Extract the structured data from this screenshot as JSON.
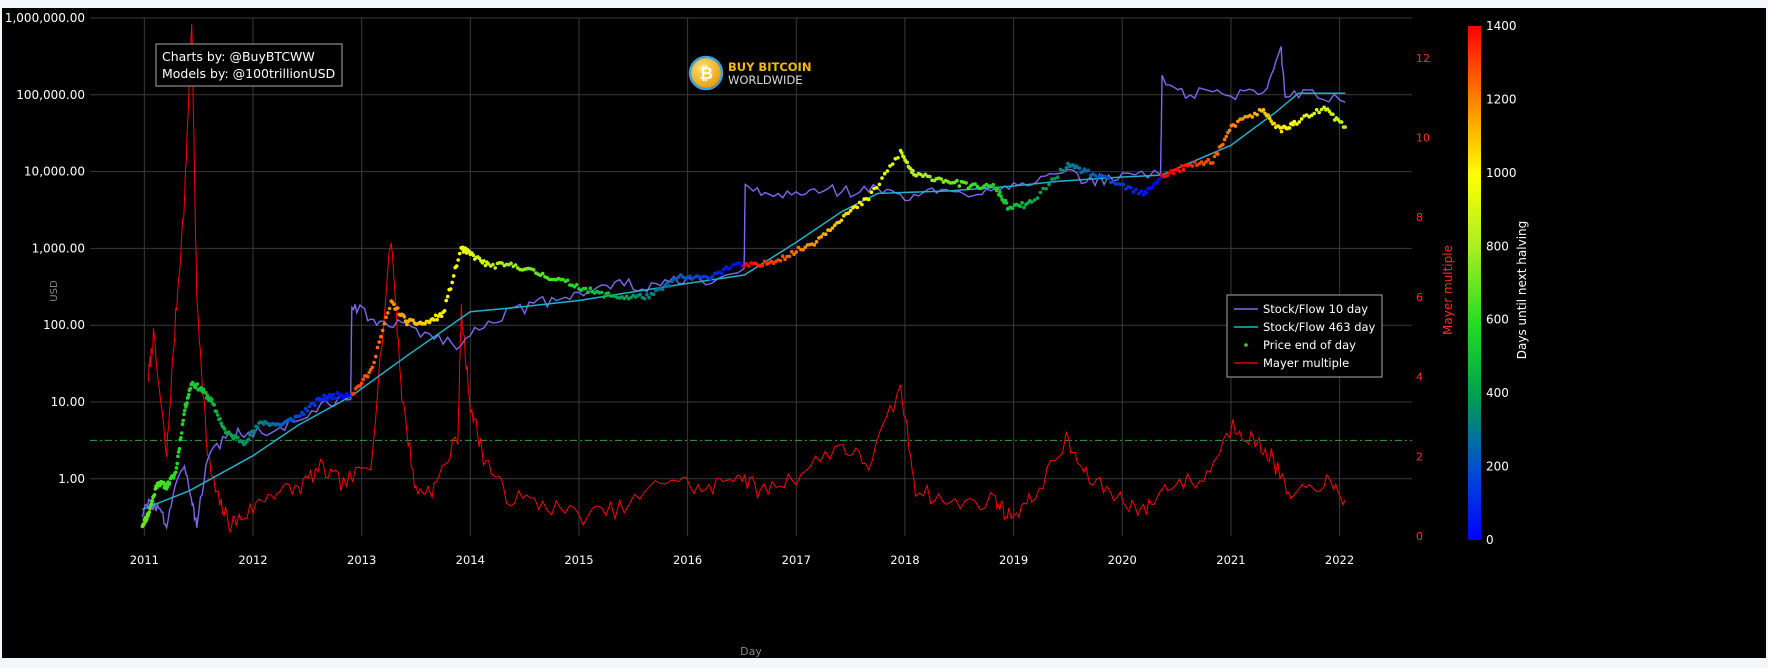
{
  "chart_data": {
    "type": "scatter",
    "credits": {
      "line1": "Charts by: @BuyBTCWW",
      "line2": "Models by: @100trillionUSD"
    },
    "logo": {
      "line1": "BUY BITCOIN",
      "line2": "WORLDWIDE",
      "symbol": "₿"
    },
    "xlabel": "Day",
    "ylabel_left": "USD",
    "ylabel_right": "Mayer multiple",
    "colorbar_label": "Days until next halving",
    "x_ticks": [
      "2011",
      "2012",
      "2013",
      "2014",
      "2015",
      "2016",
      "2017",
      "2018",
      "2019",
      "2020",
      "2021",
      "2022"
    ],
    "y_left_scale": "log",
    "y_left_ticks": [
      "1.00",
      "10.00",
      "100.00",
      "1,000.00",
      "10,000.00",
      "100,000.00",
      "1,000,000.00"
    ],
    "y_left_range": [
      0.18,
      1000000
    ],
    "y_right_ticks": [
      "0",
      "2",
      "4",
      "6",
      "8",
      "10",
      "12"
    ],
    "y_right_range": [
      0,
      13
    ],
    "colorbar_ticks": [
      "0",
      "200",
      "400",
      "600",
      "800",
      "1000",
      "1200",
      "1400"
    ],
    "colorbar_range": [
      0,
      1400
    ],
    "x_range": [
      "2010-07-01",
      "2022-09-01"
    ],
    "reference_line": {
      "y": 2.4,
      "axis": "right",
      "style": "dash-dot",
      "color": "#2ea043"
    },
    "legend_position": "right-middle",
    "series": [
      {
        "name": "Stock/Flow 10 day",
        "color": "#7b68ee",
        "points": [
          [
            "2010-12-25",
            0.35
          ],
          [
            "2011-01-20",
            0.5
          ],
          [
            "2011-02-20",
            0.4
          ],
          [
            "2011-03-15",
            0.25
          ],
          [
            "2011-04-15",
            0.9
          ],
          [
            "2011-05-20",
            1.3
          ],
          [
            "2011-06-10",
            0.5
          ],
          [
            "2011-06-25",
            0.25
          ],
          [
            "2011-08-01",
            2.0
          ],
          [
            "2011-10-01",
            3.5
          ],
          [
            "2011-12-01",
            4.0
          ],
          [
            "2012-03-01",
            4.0
          ],
          [
            "2012-06-01",
            6.0
          ],
          [
            "2012-09-01",
            9.0
          ],
          [
            "2012-11-25",
            12.0
          ],
          [
            "2012-11-29",
            200
          ],
          [
            "2013-01-01",
            150
          ],
          [
            "2013-03-01",
            100
          ],
          [
            "2013-06-01",
            100
          ],
          [
            "2013-09-01",
            70
          ],
          [
            "2013-12-01",
            55
          ],
          [
            "2014-03-01",
            120
          ],
          [
            "2014-06-01",
            150
          ],
          [
            "2014-09-01",
            200
          ],
          [
            "2014-12-01",
            250
          ],
          [
            "2015-03-01",
            300
          ],
          [
            "2015-06-01",
            350
          ],
          [
            "2015-09-01",
            300
          ],
          [
            "2015-12-01",
            400
          ],
          [
            "2016-03-01",
            350
          ],
          [
            "2016-07-08",
            450
          ],
          [
            "2016-07-12",
            6000
          ],
          [
            "2016-10-01",
            5000
          ],
          [
            "2017-01-01",
            5000
          ],
          [
            "2017-04-01",
            6000
          ],
          [
            "2017-07-01",
            5500
          ],
          [
            "2017-10-01",
            6000
          ],
          [
            "2018-01-01",
            4500
          ],
          [
            "2018-04-01",
            5500
          ],
          [
            "2018-07-01",
            5000
          ],
          [
            "2018-10-01",
            6000
          ],
          [
            "2019-01-01",
            7000
          ],
          [
            "2019-04-01",
            8000
          ],
          [
            "2019-07-01",
            9000
          ],
          [
            "2019-10-01",
            7500
          ],
          [
            "2020-01-01",
            9000
          ],
          [
            "2020-05-08",
            9000
          ],
          [
            "2020-05-13",
            160000
          ],
          [
            "2020-08-01",
            100000
          ],
          [
            "2020-11-01",
            110000
          ],
          [
            "2021-02-01",
            100000
          ],
          [
            "2021-05-01",
            120000
          ],
          [
            "2021-06-15",
            450000
          ],
          [
            "2021-07-01",
            110000
          ],
          [
            "2021-10-01",
            100000
          ],
          [
            "2022-01-20",
            80000
          ]
        ]
      },
      {
        "name": "Stock/Flow 463 day",
        "color": "#20b2c8",
        "points": [
          [
            "2010-12-25",
            0.4
          ],
          [
            "2011-06-01",
            0.7
          ],
          [
            "2012-01-01",
            2.0
          ],
          [
            "2012-06-01",
            5.0
          ],
          [
            "2012-11-28",
            12.0
          ],
          [
            "2013-06-01",
            40
          ],
          [
            "2014-01-01",
            150
          ],
          [
            "2014-06-01",
            170
          ],
          [
            "2015-01-01",
            210
          ],
          [
            "2015-06-01",
            260
          ],
          [
            "2016-01-01",
            350
          ],
          [
            "2016-07-09",
            450
          ],
          [
            "2017-01-01",
            1200
          ],
          [
            "2017-06-01",
            3000
          ],
          [
            "2017-10-01",
            5200
          ],
          [
            "2018-06-01",
            5600
          ],
          [
            "2019-01-01",
            6500
          ],
          [
            "2019-06-01",
            7500
          ],
          [
            "2020-01-01",
            8500
          ],
          [
            "2020-05-11",
            9000
          ],
          [
            "2021-01-01",
            22000
          ],
          [
            "2021-06-01",
            60000
          ],
          [
            "2021-08-15",
            105000
          ],
          [
            "2022-01-20",
            105000
          ]
        ]
      },
      {
        "name": "Price end of day",
        "marker": "dot",
        "color_by": "days_until_next_halving",
        "points": [
          [
            "2010-12-25",
            0.25
          ],
          [
            "2011-01-15",
            0.35
          ],
          [
            "2011-02-15",
            0.9
          ],
          [
            "2011-03-15",
            0.8
          ],
          [
            "2011-04-15",
            1.2
          ],
          [
            "2011-05-15",
            8.0
          ],
          [
            "2011-06-08",
            18
          ],
          [
            "2011-07-15",
            14
          ],
          [
            "2011-08-15",
            10
          ],
          [
            "2011-10-01",
            4.0
          ],
          [
            "2011-12-01",
            3.0
          ],
          [
            "2012-02-01",
            5.5
          ],
          [
            "2012-04-01",
            5.0
          ],
          [
            "2012-06-01",
            6.5
          ],
          [
            "2012-08-15",
            11
          ],
          [
            "2012-10-01",
            12
          ],
          [
            "2012-12-01",
            13
          ],
          [
            "2013-02-01",
            25
          ],
          [
            "2013-04-09",
            200
          ],
          [
            "2013-06-01",
            110
          ],
          [
            "2013-08-01",
            105
          ],
          [
            "2013-10-01",
            140
          ],
          [
            "2013-12-01",
            1000
          ],
          [
            "2014-01-01",
            850
          ],
          [
            "2014-03-01",
            600
          ],
          [
            "2014-06-01",
            600
          ],
          [
            "2014-09-01",
            450
          ],
          [
            "2014-12-01",
            350
          ],
          [
            "2015-03-01",
            260
          ],
          [
            "2015-06-01",
            230
          ],
          [
            "2015-09-01",
            240
          ],
          [
            "2015-12-01",
            420
          ],
          [
            "2016-03-01",
            410
          ],
          [
            "2016-06-01",
            600
          ],
          [
            "2016-09-01",
            600
          ],
          [
            "2016-12-01",
            800
          ],
          [
            "2017-03-01",
            1200
          ],
          [
            "2017-06-01",
            2500
          ],
          [
            "2017-09-01",
            4500
          ],
          [
            "2017-12-17",
            18000
          ],
          [
            "2018-02-01",
            9000
          ],
          [
            "2018-05-01",
            8000
          ],
          [
            "2018-08-01",
            6500
          ],
          [
            "2018-11-01",
            6300
          ],
          [
            "2018-12-15",
            3300
          ],
          [
            "2019-03-01",
            3900
          ],
          [
            "2019-06-26",
            12000
          ],
          [
            "2019-09-01",
            10000
          ],
          [
            "2019-12-01",
            7300
          ],
          [
            "2020-03-12",
            5000
          ],
          [
            "2020-05-11",
            8600
          ],
          [
            "2020-08-01",
            11500
          ],
          [
            "2020-11-01",
            14000
          ],
          [
            "2021-01-08",
            40000
          ],
          [
            "2021-04-14",
            63000
          ],
          [
            "2021-06-15",
            35000
          ],
          [
            "2021-08-01",
            42000
          ],
          [
            "2021-11-10",
            67000
          ],
          [
            "2022-01-20",
            38000
          ]
        ]
      },
      {
        "name": "Mayer multiple",
        "color": "#ff0000",
        "axis": "right",
        "points": [
          [
            "2011-01-15",
            4.0
          ],
          [
            "2011-02-01",
            5.0
          ],
          [
            "2011-03-15",
            2.0
          ],
          [
            "2011-04-15",
            5.5
          ],
          [
            "2011-05-15",
            8.5
          ],
          [
            "2011-06-08",
            13.0
          ],
          [
            "2011-06-25",
            6.0
          ],
          [
            "2011-08-01",
            2.0
          ],
          [
            "2011-09-01",
            1.0
          ],
          [
            "2011-10-15",
            0.3
          ],
          [
            "2011-12-01",
            0.5
          ],
          [
            "2012-03-01",
            1.1
          ],
          [
            "2012-06-01",
            1.2
          ],
          [
            "2012-08-15",
            1.7
          ],
          [
            "2012-11-01",
            1.3
          ],
          [
            "2013-02-01",
            1.8
          ],
          [
            "2013-04-09",
            7.5
          ],
          [
            "2013-05-15",
            3.5
          ],
          [
            "2013-07-01",
            1.1
          ],
          [
            "2013-09-01",
            1.2
          ],
          [
            "2013-11-20",
            2.5
          ],
          [
            "2013-12-01",
            5.6
          ],
          [
            "2014-01-01",
            3.3
          ],
          [
            "2014-02-15",
            2.0
          ],
          [
            "2014-05-01",
            1.0
          ],
          [
            "2014-09-01",
            0.8
          ],
          [
            "2015-01-15",
            0.5
          ],
          [
            "2015-06-01",
            0.7
          ],
          [
            "2015-11-05",
            1.5
          ],
          [
            "2016-03-01",
            1.1
          ],
          [
            "2016-06-15",
            1.6
          ],
          [
            "2016-09-01",
            1.1
          ],
          [
            "2017-01-01",
            1.5
          ],
          [
            "2017-05-25",
            2.3
          ],
          [
            "2017-09-01",
            1.8
          ],
          [
            "2017-12-17",
            3.7
          ],
          [
            "2018-02-06",
            1.2
          ],
          [
            "2018-06-01",
            0.8
          ],
          [
            "2018-11-01",
            0.9
          ],
          [
            "2018-12-15",
            0.5
          ],
          [
            "2019-03-01",
            0.9
          ],
          [
            "2019-06-26",
            2.4
          ],
          [
            "2019-09-01",
            1.5
          ],
          [
            "2019-12-15",
            1.0
          ],
          [
            "2020-03-12",
            0.6
          ],
          [
            "2020-06-01",
            1.3
          ],
          [
            "2020-10-01",
            1.4
          ],
          [
            "2021-01-08",
            2.8
          ],
          [
            "2021-03-15",
            2.4
          ],
          [
            "2021-05-15",
            2.0
          ],
          [
            "2021-07-20",
            0.9
          ],
          [
            "2021-11-10",
            1.4
          ],
          [
            "2022-01-20",
            0.9
          ]
        ]
      }
    ]
  }
}
